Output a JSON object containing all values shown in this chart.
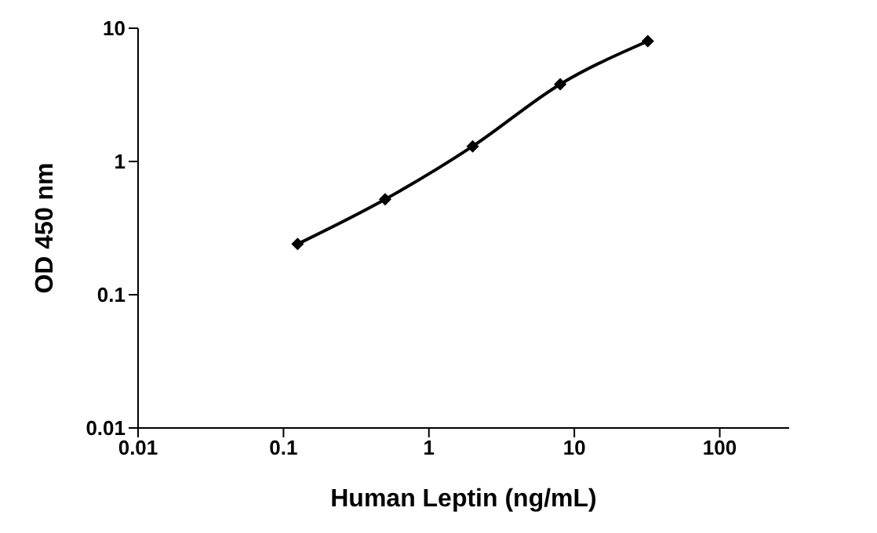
{
  "chart_data": {
    "type": "line",
    "xlabel": "Human Leptin (ng/mL)",
    "ylabel": "OD 450 nm",
    "x": [
      0.125,
      0.5,
      2,
      8,
      32
    ],
    "series": [
      {
        "color": "#000000",
        "values": [
          0.24,
          0.52,
          1.3,
          3.8,
          8.0
        ]
      }
    ],
    "log": "xy",
    "xlim": [
      0.01,
      300
    ],
    "xticks": [
      0.01,
      0.1,
      1,
      10,
      100
    ],
    "ylim": [
      0.01,
      10
    ],
    "yticks": [
      0.01,
      0.1,
      1,
      10
    ],
    "grid": false,
    "legend": false,
    "marker": "diamond",
    "line_style": "solid"
  }
}
